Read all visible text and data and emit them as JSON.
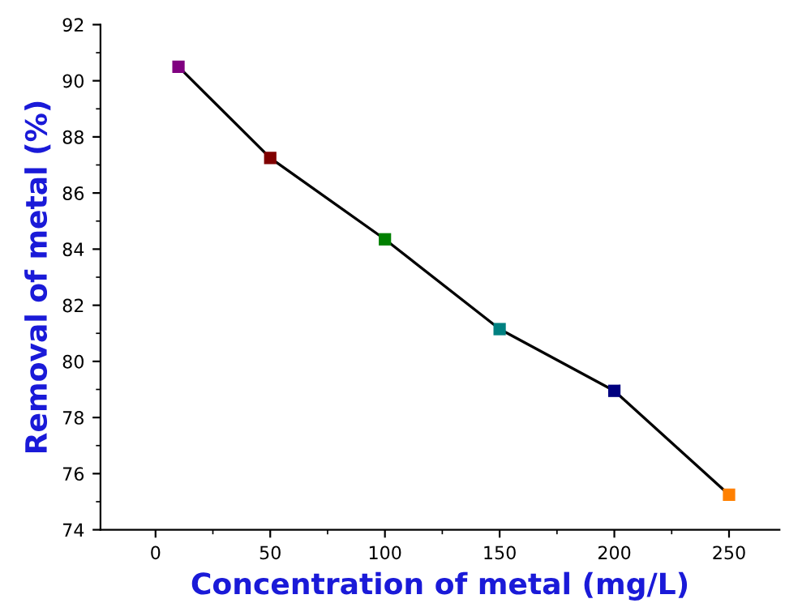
{
  "chart_data": {
    "type": "line",
    "xlabel": "Concentration of metal (mg/L)",
    "ylabel": "Removal of metal (%)",
    "x": [
      10,
      50,
      100,
      150,
      200,
      250
    ],
    "series": [
      {
        "color": "#000000",
        "colors": [
          "#800080",
          "#800000",
          "#008000",
          "#008080",
          "#000080",
          "#ff8000"
        ],
        "values": [
          90.5,
          87.25,
          84.35,
          81.15,
          78.95,
          75.25
        ]
      }
    ],
    "marker": "square",
    "line_style": "solid",
    "grid": false,
    "legend": false,
    "xlim": [
      -24,
      272
    ],
    "xticks": [
      0,
      50,
      100,
      150,
      200,
      250
    ],
    "ylim": [
      74,
      92
    ],
    "yticks": [
      74,
      76,
      78,
      80,
      82,
      84,
      86,
      88,
      90,
      92
    ]
  }
}
